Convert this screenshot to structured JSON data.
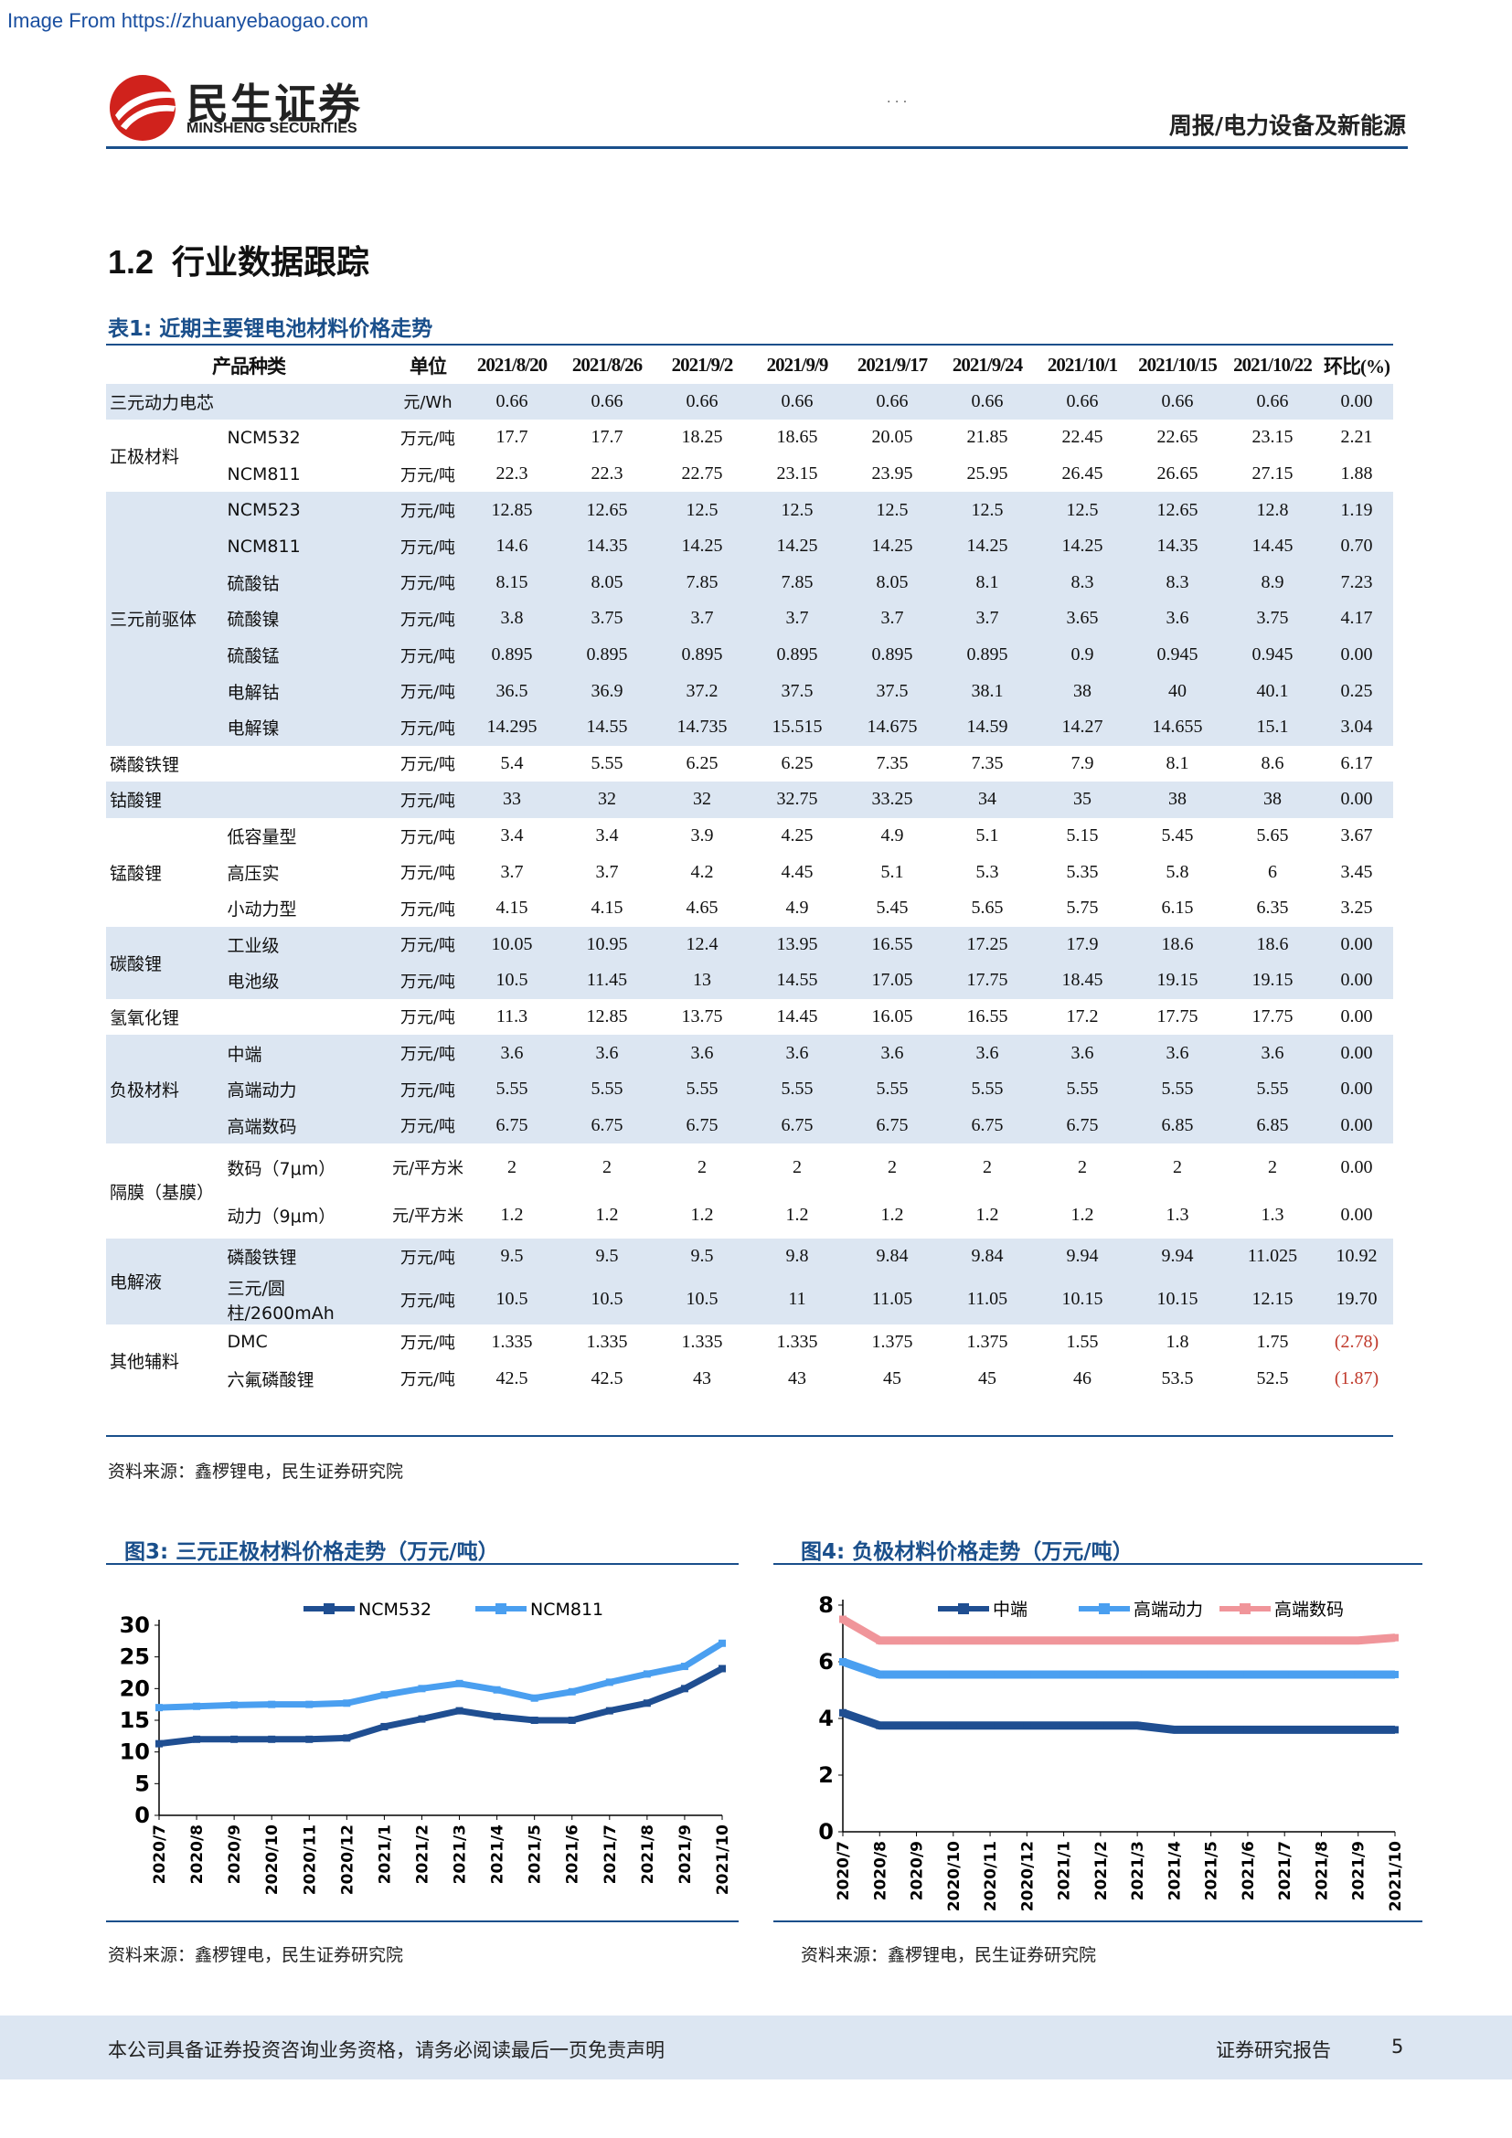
{
  "watermark": "Image From https://zhuanyebaogao.com",
  "brand": {
    "cn": "民生证券",
    "en": "MINSHENG SECURITIES",
    "color": "#d0221c"
  },
  "header": {
    "category": "周报/电力设备及新能源",
    "mark": "· · ·"
  },
  "section": {
    "number": "1.2",
    "title": "行业数据跟踪"
  },
  "table": {
    "caption": "表1: 近期主要锂电池材料价格走势",
    "headers": [
      "产品种类",
      "单位",
      "2021/8/20",
      "2021/8/26",
      "2021/9/2",
      "2021/9/9",
      "2021/9/17",
      "2021/9/24",
      "2021/10/1",
      "2021/10/15",
      "2021/10/22",
      "环比(%)"
    ],
    "groups": [
      {
        "category": "三元动力电芯",
        "shade": true,
        "rows": [
          {
            "sub": "",
            "unit": "元/Wh",
            "values": [
              "0.66",
              "0.66",
              "0.66",
              "0.66",
              "0.66",
              "0.66",
              "0.66",
              "0.66",
              "0.66",
              "0.00"
            ]
          }
        ]
      },
      {
        "category": "正极材料",
        "shade": false,
        "rows": [
          {
            "sub": "NCM532",
            "unit": "万元/吨",
            "values": [
              "17.7",
              "17.7",
              "18.25",
              "18.65",
              "20.05",
              "21.85",
              "22.45",
              "22.65",
              "23.15",
              "2.21"
            ]
          },
          {
            "sub": "NCM811",
            "unit": "万元/吨",
            "values": [
              "22.3",
              "22.3",
              "22.75",
              "23.15",
              "23.95",
              "25.95",
              "26.45",
              "26.65",
              "27.15",
              "1.88"
            ]
          }
        ]
      },
      {
        "category": "三元前驱体",
        "shade": true,
        "rows": [
          {
            "sub": "NCM523",
            "unit": "万元/吨",
            "values": [
              "12.85",
              "12.65",
              "12.5",
              "12.5",
              "12.5",
              "12.5",
              "12.5",
              "12.65",
              "12.8",
              "1.19"
            ]
          },
          {
            "sub": "NCM811",
            "unit": "万元/吨",
            "values": [
              "14.6",
              "14.35",
              "14.25",
              "14.25",
              "14.25",
              "14.25",
              "14.25",
              "14.35",
              "14.45",
              "0.70"
            ]
          },
          {
            "sub": "硫酸钴",
            "unit": "万元/吨",
            "values": [
              "8.15",
              "8.05",
              "7.85",
              "7.85",
              "8.05",
              "8.1",
              "8.3",
              "8.3",
              "8.9",
              "7.23"
            ]
          },
          {
            "sub": "硫酸镍",
            "unit": "万元/吨",
            "values": [
              "3.8",
              "3.75",
              "3.7",
              "3.7",
              "3.7",
              "3.7",
              "3.65",
              "3.6",
              "3.75",
              "4.17"
            ]
          },
          {
            "sub": "硫酸锰",
            "unit": "万元/吨",
            "values": [
              "0.895",
              "0.895",
              "0.895",
              "0.895",
              "0.895",
              "0.895",
              "0.9",
              "0.945",
              "0.945",
              "0.00"
            ]
          },
          {
            "sub": "电解钴",
            "unit": "万元/吨",
            "values": [
              "36.5",
              "36.9",
              "37.2",
              "37.5",
              "37.5",
              "38.1",
              "38",
              "40",
              "40.1",
              "0.25"
            ]
          },
          {
            "sub": "电解镍",
            "unit": "万元/吨",
            "values": [
              "14.295",
              "14.55",
              "14.735",
              "15.515",
              "14.675",
              "14.59",
              "14.27",
              "14.655",
              "15.1",
              "3.04"
            ]
          }
        ]
      },
      {
        "category": "磷酸铁锂",
        "shade": false,
        "rows": [
          {
            "sub": "",
            "unit": "万元/吨",
            "values": [
              "5.4",
              "5.55",
              "6.25",
              "6.25",
              "7.35",
              "7.35",
              "7.9",
              "8.1",
              "8.6",
              "6.17"
            ]
          }
        ]
      },
      {
        "category": "钴酸锂",
        "shade": true,
        "rows": [
          {
            "sub": "",
            "unit": "万元/吨",
            "values": [
              "33",
              "32",
              "32",
              "32.75",
              "33.25",
              "34",
              "35",
              "38",
              "38",
              "0.00"
            ]
          }
        ]
      },
      {
        "category": "锰酸锂",
        "shade": false,
        "rows": [
          {
            "sub": "低容量型",
            "unit": "万元/吨",
            "values": [
              "3.4",
              "3.4",
              "3.9",
              "4.25",
              "4.9",
              "5.1",
              "5.15",
              "5.45",
              "5.65",
              "3.67"
            ]
          },
          {
            "sub": "高压实",
            "unit": "万元/吨",
            "values": [
              "3.7",
              "3.7",
              "4.2",
              "4.45",
              "5.1",
              "5.3",
              "5.35",
              "5.8",
              "6",
              "3.45"
            ]
          },
          {
            "sub": "小动力型",
            "unit": "万元/吨",
            "values": [
              "4.15",
              "4.15",
              "4.65",
              "4.9",
              "5.45",
              "5.65",
              "5.75",
              "6.15",
              "6.35",
              "3.25"
            ]
          }
        ]
      },
      {
        "category": "碳酸锂",
        "shade": true,
        "rows": [
          {
            "sub": "工业级",
            "unit": "万元/吨",
            "values": [
              "10.05",
              "10.95",
              "12.4",
              "13.95",
              "16.55",
              "17.25",
              "17.9",
              "18.6",
              "18.6",
              "0.00"
            ]
          },
          {
            "sub": "电池级",
            "unit": "万元/吨",
            "values": [
              "10.5",
              "11.45",
              "13",
              "14.55",
              "17.05",
              "17.75",
              "18.45",
              "19.15",
              "19.15",
              "0.00"
            ]
          }
        ]
      },
      {
        "category": "氢氧化锂",
        "shade": false,
        "rows": [
          {
            "sub": "",
            "unit": "万元/吨",
            "values": [
              "11.3",
              "12.85",
              "13.75",
              "14.45",
              "16.05",
              "16.55",
              "17.2",
              "17.75",
              "17.75",
              "0.00"
            ]
          }
        ]
      },
      {
        "category": "负极材料",
        "shade": true,
        "rows": [
          {
            "sub": "中端",
            "unit": "万元/吨",
            "values": [
              "3.6",
              "3.6",
              "3.6",
              "3.6",
              "3.6",
              "3.6",
              "3.6",
              "3.6",
              "3.6",
              "0.00"
            ]
          },
          {
            "sub": "高端动力",
            "unit": "万元/吨",
            "values": [
              "5.55",
              "5.55",
              "5.55",
              "5.55",
              "5.55",
              "5.55",
              "5.55",
              "5.55",
              "5.55",
              "0.00"
            ]
          },
          {
            "sub": "高端数码",
            "unit": "万元/吨",
            "values": [
              "6.75",
              "6.75",
              "6.75",
              "6.75",
              "6.75",
              "6.75",
              "6.75",
              "6.85",
              "6.85",
              "0.00"
            ]
          }
        ]
      },
      {
        "category": "隔膜（基膜）",
        "shade": false,
        "tall": true,
        "rows": [
          {
            "sub": "数码（7μm）",
            "unit": "元/平方米",
            "values": [
              "2",
              "2",
              "2",
              "2",
              "2",
              "2",
              "2",
              "2",
              "2",
              "0.00"
            ]
          },
          {
            "sub": "动力（9μm）",
            "unit": "元/平方米",
            "values": [
              "1.2",
              "1.2",
              "1.2",
              "1.2",
              "1.2",
              "1.2",
              "1.2",
              "1.3",
              "1.3",
              "0.00"
            ]
          }
        ]
      },
      {
        "category": "电解液",
        "shade": true,
        "rows": [
          {
            "sub": "磷酸铁锂",
            "unit": "万元/吨",
            "values": [
              "9.5",
              "9.5",
              "9.5",
              "9.8",
              "9.84",
              "9.84",
              "9.94",
              "9.94",
              "11.025",
              "10.92"
            ]
          },
          {
            "sub": "三元/圆柱/2600mAh",
            "unit": "万元/吨",
            "tall": true,
            "values": [
              "10.5",
              "10.5",
              "10.5",
              "11",
              "11.05",
              "11.05",
              "10.15",
              "10.15",
              "12.15",
              "19.70"
            ]
          }
        ]
      },
      {
        "category": "其他辅料",
        "shade": false,
        "rows": [
          {
            "sub": "DMC",
            "unit": "万元/吨",
            "values": [
              "1.335",
              "1.335",
              "1.335",
              "1.335",
              "1.375",
              "1.375",
              "1.55",
              "1.8",
              "1.75",
              "(2.78)"
            ]
          },
          {
            "sub": "六氟磷酸锂",
            "unit": "万元/吨",
            "values": [
              "42.5",
              "42.5",
              "43",
              "43",
              "45",
              "45",
              "46",
              "53.5",
              "52.5",
              "(1.87)"
            ]
          }
        ]
      }
    ],
    "source": "资料来源：鑫椤锂电，民生证券研究院"
  },
  "figures": {
    "fig3": {
      "caption": "图3: 三元正极材料价格走势（万元/吨）",
      "source": "资料来源：鑫椤锂电，民生证券研究院"
    },
    "fig4": {
      "caption": "图4: 负极材料价格走势（万元/吨）",
      "source": "资料来源：鑫椤锂电，民生证券研究院"
    }
  },
  "chart_data": [
    {
      "type": "line",
      "title": "",
      "xlabel": "",
      "ylabel": "",
      "x": [
        "2020/7",
        "2020/8",
        "2020/9",
        "2020/10",
        "2020/11",
        "2020/12",
        "2021/1",
        "2021/2",
        "2021/3",
        "2021/4",
        "2021/5",
        "2021/6",
        "2021/7",
        "2021/8",
        "2021/9",
        "2021/10"
      ],
      "ylim": [
        0,
        30
      ],
      "yticks": [
        0,
        5,
        10,
        15,
        20,
        25,
        30
      ],
      "legend": "top",
      "series": [
        {
          "name": "NCM532",
          "color": "#1f4e91",
          "values": [
            11.3,
            12.0,
            12.0,
            12.0,
            12.0,
            12.2,
            14.0,
            15.2,
            16.5,
            15.6,
            15.0,
            15.0,
            16.5,
            17.7,
            20.0,
            23.15
          ]
        },
        {
          "name": "NCM811",
          "color": "#4a9ff0",
          "values": [
            17.0,
            17.2,
            17.4,
            17.5,
            17.5,
            17.7,
            19.0,
            20.0,
            20.8,
            19.8,
            18.5,
            19.5,
            21.0,
            22.3,
            23.5,
            27.15
          ]
        }
      ]
    },
    {
      "type": "line",
      "title": "",
      "xlabel": "",
      "ylabel": "",
      "x": [
        "2020/7",
        "2020/8",
        "2020/9",
        "2020/10",
        "2020/11",
        "2020/12",
        "2021/1",
        "2021/2",
        "2021/3",
        "2021/4",
        "2021/5",
        "2021/6",
        "2021/7",
        "2021/8",
        "2021/9",
        "2021/10"
      ],
      "ylim": [
        0,
        8
      ],
      "yticks": [
        0,
        2,
        4,
        6,
        8
      ],
      "legend": "top",
      "series": [
        {
          "name": "中端",
          "color": "#1f4e91",
          "values": [
            4.2,
            3.75,
            3.75,
            3.75,
            3.75,
            3.75,
            3.75,
            3.75,
            3.75,
            3.6,
            3.6,
            3.6,
            3.6,
            3.6,
            3.6,
            3.6
          ]
        },
        {
          "name": "高端动力",
          "color": "#4a9ff0",
          "values": [
            6.0,
            5.55,
            5.55,
            5.55,
            5.55,
            5.55,
            5.55,
            5.55,
            5.55,
            5.55,
            5.55,
            5.55,
            5.55,
            5.55,
            5.55,
            5.55
          ]
        },
        {
          "name": "高端数码",
          "color": "#f0959a",
          "values": [
            7.5,
            6.75,
            6.75,
            6.75,
            6.75,
            6.75,
            6.75,
            6.75,
            6.75,
            6.75,
            6.75,
            6.75,
            6.75,
            6.75,
            6.75,
            6.85
          ]
        }
      ]
    }
  ],
  "footer": {
    "disclaimer": "本公司具备证券投资咨询业务资格，请务必阅读最后一页免责声明",
    "label": "证券研究报告",
    "page": "5"
  }
}
